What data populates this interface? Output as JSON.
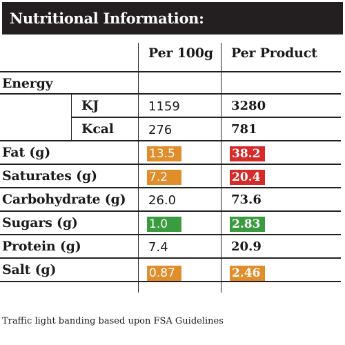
{
  "title": "Nutritional Information:",
  "columns": {
    "per100g": "Per 100g",
    "perProduct": "Per Product"
  },
  "energy": {
    "label": "Energy",
    "kj": {
      "label": "KJ",
      "per100g": "1159",
      "perProduct": "3280"
    },
    "kcal": {
      "label": "Kcal",
      "per100g": "276",
      "perProduct": "781"
    }
  },
  "rows": {
    "fat": {
      "label": "Fat (g)",
      "per100g": "13.5",
      "perProduct": "38.2"
    },
    "saturates": {
      "label": "Saturates (g)",
      "per100g": "7.2",
      "perProduct": "20.4"
    },
    "carbohydrate": {
      "label": "Carbohydrate (g)",
      "per100g": "26.0",
      "perProduct": "73.6"
    },
    "sugars": {
      "label": "Sugars (g)",
      "per100g": "1.0",
      "perProduct": "2.83"
    },
    "protein": {
      "label": "Protein (g)",
      "per100g": "7.4",
      "perProduct": "20.9"
    },
    "salt": {
      "label": "Salt (g)",
      "per100g": "0.87",
      "perProduct": "2.46"
    }
  },
  "colors": {
    "amber": "#e08e2b",
    "red": "#d52b2b",
    "green": "#3a9b3f",
    "titleBar": "#231f20"
  },
  "footnote": "Traffic light banding based upon FSA Guidelines"
}
